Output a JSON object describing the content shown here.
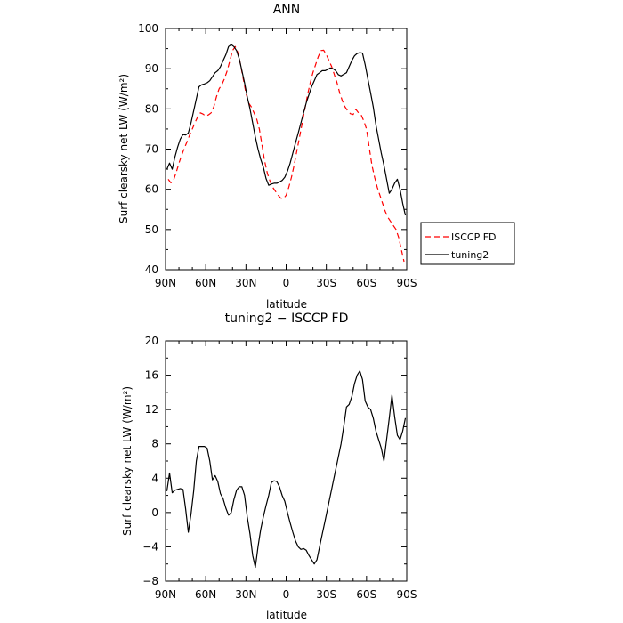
{
  "chart_data": [
    {
      "type": "line",
      "title": "ANN",
      "xlabel": "latitude",
      "ylabel": "Surf clearsky net LW (W/m²)",
      "xlim": [
        90,
        -90
      ],
      "ylim": [
        40,
        100
      ],
      "xticks": [
        90,
        60,
        30,
        0,
        -30,
        -60,
        -90
      ],
      "xtick_labels": [
        "90N",
        "60N",
        "30N",
        "0",
        "30S",
        "60S",
        "90S"
      ],
      "yticks": [
        40,
        50,
        60,
        70,
        80,
        90,
        100
      ],
      "ytick_labels": [
        "40",
        "50",
        "60",
        "70",
        "80",
        "90",
        "100"
      ],
      "legend_position": "right",
      "series": [
        {
          "name": "ISCCP FD",
          "color": "#ff0000",
          "dash": "dashed",
          "x": [
            88,
            86,
            84,
            82,
            80,
            78,
            76,
            74,
            72,
            70,
            68,
            66,
            64,
            62,
            60,
            58,
            56,
            54,
            52,
            50,
            48,
            46,
            44,
            42,
            40,
            38,
            36,
            34,
            32,
            30,
            28,
            26,
            24,
            22,
            20,
            18,
            16,
            14,
            12,
            10,
            8,
            6,
            4,
            2,
            0,
            -2,
            -4,
            -6,
            -8,
            -10,
            -12,
            -14,
            -16,
            -18,
            -20,
            -22,
            -24,
            -26,
            -28,
            -30,
            -32,
            -34,
            -36,
            -38,
            -40,
            -42,
            -44,
            -46,
            -48,
            -50,
            -52,
            -54,
            -56,
            -58,
            -60,
            -62,
            -64,
            -66,
            -68,
            -70,
            -72,
            -74,
            -76,
            -78,
            -80,
            -82,
            -84,
            -86,
            -88
          ],
          "values": [
            62.5,
            61.6,
            62.3,
            64.2,
            66.5,
            68.5,
            70.2,
            71.8,
            73.5,
            75.0,
            76.6,
            78.0,
            79.0,
            78.7,
            78.2,
            78.5,
            79.0,
            80.5,
            83.0,
            85.0,
            86.0,
            87.5,
            89.5,
            92.0,
            94.5,
            95.5,
            94.0,
            91.0,
            87.5,
            84.0,
            81.5,
            80.5,
            79.0,
            77.5,
            75.0,
            71.0,
            67.0,
            64.0,
            62.0,
            60.5,
            59.5,
            58.5,
            57.8,
            57.7,
            58.5,
            60.5,
            63.0,
            66.0,
            69.5,
            73.0,
            76.5,
            80.0,
            83.5,
            86.5,
            89.0,
            91.0,
            93.0,
            94.5,
            94.6,
            93.5,
            92.0,
            90.5,
            88.5,
            86.5,
            84.0,
            82.0,
            80.5,
            79.5,
            78.8,
            78.6,
            79.9,
            79.0,
            78.5,
            77.0,
            75.0,
            70.5,
            66.0,
            63.0,
            60.5,
            58.5,
            56.5,
            54.5,
            53.0,
            52.0,
            51.0,
            50.0,
            48.0,
            45.0,
            42.0
          ]
        },
        {
          "name": "tuning2",
          "color": "#000000",
          "dash": "solid",
          "x": [
            89,
            87,
            85,
            83,
            81,
            79,
            77,
            75,
            73,
            71,
            69,
            67,
            65,
            63,
            61,
            59,
            57,
            55,
            53,
            51,
            49,
            47,
            45,
            43,
            41,
            39,
            37,
            35,
            33,
            31,
            29,
            27,
            25,
            23,
            21,
            19,
            17,
            15,
            13,
            11,
            9,
            7,
            5,
            3,
            1,
            -1,
            -3,
            -5,
            -7,
            -9,
            -11,
            -13,
            -15,
            -17,
            -19,
            -21,
            -23,
            -25,
            -27,
            -29,
            -31,
            -33,
            -35,
            -37,
            -39,
            -41,
            -43,
            -45,
            -47,
            -49,
            -51,
            -53,
            -55,
            -57,
            -59,
            -61,
            -63,
            -65,
            -67,
            -69,
            -71,
            -73,
            -75,
            -77,
            -79,
            -81,
            -83,
            -85,
            -87,
            -89
          ],
          "values": [
            65.0,
            66.5,
            65.0,
            68.0,
            70.5,
            72.5,
            73.6,
            73.5,
            74.0,
            76.5,
            79.5,
            82.5,
            85.5,
            86.0,
            86.2,
            86.5,
            87.0,
            88.0,
            89.0,
            89.5,
            90.5,
            92.0,
            93.5,
            95.5,
            96.0,
            95.5,
            94.5,
            92.5,
            89.5,
            86.5,
            83.0,
            80.0,
            76.5,
            73.0,
            70.0,
            67.5,
            65.5,
            62.7,
            61.0,
            61.3,
            61.5,
            61.5,
            61.8,
            62.2,
            63.0,
            64.5,
            66.5,
            69.0,
            71.5,
            74.0,
            76.5,
            79.0,
            81.5,
            83.5,
            85.5,
            87.0,
            88.5,
            89.0,
            89.5,
            89.5,
            89.8,
            90.2,
            90.0,
            89.5,
            88.5,
            88.2,
            88.6,
            89.0,
            90.5,
            92.0,
            93.2,
            93.8,
            94.0,
            93.9,
            91.0,
            87.5,
            84.0,
            80.5,
            76.0,
            72.5,
            69.0,
            66.0,
            62.5,
            59.0,
            60.0,
            61.5,
            62.5,
            60.0,
            56.5,
            53.5
          ]
        }
      ]
    },
    {
      "type": "line",
      "title": "tuning2 − ISCCP FD",
      "xlabel": "latitude",
      "ylabel": "Surf clearsky net LW (W/m²)",
      "xlim": [
        90,
        -90
      ],
      "ylim": [
        -8,
        20
      ],
      "xticks": [
        90,
        60,
        30,
        0,
        -30,
        -60,
        -90
      ],
      "xtick_labels": [
        "90N",
        "60N",
        "30N",
        "0",
        "30S",
        "60S",
        "90S"
      ],
      "yticks": [
        -8,
        -4,
        0,
        4,
        8,
        12,
        16,
        20
      ],
      "ytick_labels": [
        "−8",
        "−4",
        "0",
        "4",
        "8",
        "12",
        "16",
        "20"
      ],
      "series": [
        {
          "color": "#000000",
          "dash": "solid",
          "x": [
            89,
            87,
            85,
            83,
            81,
            79,
            77,
            75,
            73,
            71,
            69,
            67,
            65,
            63,
            61,
            59,
            57,
            55,
            53,
            51,
            49,
            47,
            45,
            43,
            41,
            39,
            37,
            35,
            33,
            31,
            29,
            27,
            25,
            23,
            21,
            19,
            17,
            15,
            13,
            11,
            9,
            7,
            5,
            3,
            1,
            -1,
            -3,
            -5,
            -7,
            -9,
            -11,
            -13,
            -15,
            -17,
            -19,
            -21,
            -23,
            -25,
            -27,
            -29,
            -31,
            -33,
            -35,
            -37,
            -39,
            -41,
            -43,
            -45,
            -47,
            -49,
            -51,
            -53,
            -55,
            -57,
            -59,
            -61,
            -63,
            -65,
            -67,
            -69,
            -71,
            -73,
            -75,
            -77,
            -79,
            -81,
            -83,
            -85,
            -87,
            -89
          ],
          "values": [
            2.5,
            4.6,
            2.3,
            2.6,
            2.7,
            2.8,
            2.7,
            0.4,
            -2.3,
            -0.2,
            2.5,
            6.0,
            7.7,
            7.7,
            7.7,
            7.5,
            6.0,
            3.8,
            4.3,
            3.6,
            2.2,
            1.6,
            0.5,
            -0.3,
            0.0,
            1.5,
            2.6,
            3.0,
            3.0,
            2.0,
            -0.5,
            -2.5,
            -5.0,
            -6.4,
            -4.0,
            -2.0,
            -0.5,
            0.8,
            2.0,
            3.5,
            3.7,
            3.6,
            3.0,
            2.0,
            1.3,
            0.0,
            -1.2,
            -2.3,
            -3.3,
            -4.0,
            -4.3,
            -4.2,
            -4.4,
            -5.0,
            -5.5,
            -6.0,
            -5.5,
            -4.0,
            -2.5,
            -1.0,
            0.5,
            2.0,
            3.5,
            5.0,
            6.5,
            8.0,
            10.0,
            12.3,
            12.6,
            13.5,
            15.0,
            16.0,
            16.5,
            15.5,
            13.0,
            12.3,
            12.0,
            11.0,
            9.5,
            8.5,
            7.5,
            6.0,
            8.5,
            11.0,
            13.7,
            11.2,
            9.0,
            8.5,
            9.5,
            11.0
          ]
        }
      ]
    }
  ]
}
